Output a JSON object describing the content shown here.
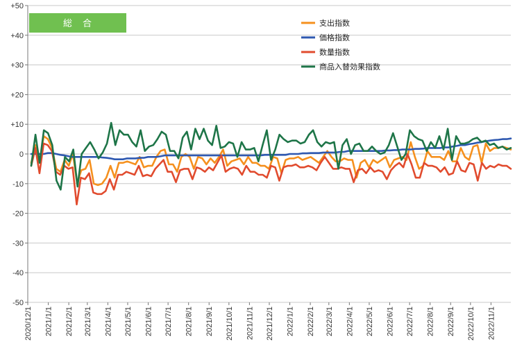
{
  "title_badge": {
    "label": "総　合",
    "color": "#70c050"
  },
  "chart_data": {
    "type": "line",
    "ylim": [
      -50,
      50
    ],
    "yticks": [
      "+50",
      "+40",
      "+30",
      "+20",
      "+10",
      "0",
      "-10",
      "-20",
      "-30",
      "-40",
      "-50"
    ],
    "ytick_values": [
      50,
      40,
      30,
      20,
      10,
      0,
      -10,
      -20,
      -30,
      -40,
      -50
    ],
    "xticks": [
      "2020/12/1",
      "2021/1/1",
      "2021/2/1",
      "2021/3/1",
      "2021/4/1",
      "2021/5/1",
      "2021/6/1",
      "2021/7/1",
      "2021/8/1",
      "2021/9/1",
      "2021/10/1",
      "2021/11/1",
      "2021/12/1",
      "2022/1/1",
      "2022/2/1",
      "2022/3/1",
      "2022/4/1",
      "2022/5/1",
      "2022/6/1",
      "2022/7/1",
      "2022/8/1",
      "2022/9/1",
      "2022/10/1",
      "2022/11/1"
    ],
    "x_start": "2020/12/1",
    "x_end": "2022/12/1",
    "legend_position": "top-right",
    "series": [
      {
        "name": "支出指数",
        "color": "#f5901e",
        "values": [
          -3,
          3,
          -3,
          6,
          5,
          2,
          -5,
          -6,
          -2,
          -4,
          0,
          -10,
          -5.5,
          -5,
          -2,
          -10,
          -10.5,
          -10,
          -8,
          -4,
          -8,
          -3,
          -3,
          -2.5,
          -3,
          -3.5,
          -1,
          -4.5,
          -4,
          -4,
          -1,
          1,
          1.5,
          -3.5,
          -3.5,
          -6,
          -1,
          0,
          -1,
          -5,
          -1,
          -1.5,
          -3.5,
          -1.5,
          -3,
          -1,
          1.5,
          -4,
          -2.5,
          -2,
          -1.5,
          -3.5,
          -1,
          -3,
          -3,
          -4,
          -4,
          -5,
          -1,
          -1.5,
          -6.5,
          -2,
          -1.5,
          -1.5,
          -1,
          -2,
          -1.5,
          -1,
          -2,
          -3,
          -1,
          1,
          -1,
          -2.5,
          -2.5,
          -1.5,
          -2,
          -2,
          -8,
          -3,
          -2,
          -4.5,
          -2,
          -3,
          -2,
          -1,
          -4.5,
          -2,
          -1.5,
          -1,
          -2,
          4,
          -1,
          -5,
          -4,
          1,
          -1,
          -1,
          -1,
          -2,
          1,
          -2.5,
          -2.5,
          2,
          -1,
          -2,
          2.5,
          3,
          -3,
          3.5,
          1,
          2,
          2,
          2.5,
          2,
          1.5
        ]
      },
      {
        "name": "価格指数",
        "color": "#2e58b0",
        "values": [
          0,
          0,
          0,
          0,
          0.3,
          0.3,
          0,
          -0.3,
          -0.5,
          -0.8,
          -1,
          -1,
          -1,
          -1,
          -1,
          -1,
          -1,
          -1.2,
          -1.3,
          -1.5,
          -1.8,
          -1.8,
          -1.8,
          -1.5,
          -1.5,
          -1.5,
          -1.3,
          -1.3,
          -1,
          -1,
          -1,
          -0.8,
          -0.5,
          -0.5,
          -0.5,
          -0.5,
          -0.5,
          -0.5,
          -0.5,
          -0.5,
          -0.5,
          -0.5,
          -0.5,
          -0.5,
          -0.5,
          -0.5,
          -0.5,
          -0.5,
          -0.5,
          -0.5,
          -0.5,
          -0.5,
          -0.5,
          -0.5,
          -0.5,
          -0.5,
          -0.3,
          -0.3,
          -0.3,
          -0.3,
          -0.3,
          -0.3,
          0,
          0,
          0,
          0.2,
          0.2,
          0.3,
          0.3,
          0.3,
          0.5,
          0.5,
          0.5,
          0.5,
          0.7,
          0.7,
          1,
          1,
          1,
          1,
          1,
          1,
          1,
          1,
          1,
          1.2,
          1.2,
          1.3,
          1.3,
          1.5,
          1.5,
          1.5,
          1.7,
          1.7,
          1.8,
          2,
          2,
          2,
          2,
          2.2,
          2.2,
          2.5,
          2.7,
          3,
          3,
          3.3,
          3.5,
          3.8,
          4,
          4.3,
          4.5,
          4.7,
          4.8,
          5,
          5,
          5.2
        ]
      },
      {
        "name": "数量指数",
        "color": "#e14b2e",
        "values": [
          -4,
          2,
          -6.5,
          3.5,
          3,
          1,
          -6,
          -7,
          -4,
          -5,
          -4.5,
          -17,
          -8,
          -8.5,
          -6.5,
          -13,
          -13.5,
          -13.5,
          -12.5,
          -8.5,
          -12,
          -7,
          -7,
          -6,
          -6.5,
          -7,
          -4,
          -7.5,
          -7,
          -7.5,
          -5,
          -3.5,
          -2,
          -6,
          -6,
          -9.5,
          -5.5,
          -5,
          -5,
          -8.5,
          -4.5,
          -5,
          -6,
          -4.5,
          -5.5,
          -3,
          -0.5,
          -6,
          -5,
          -4.5,
          -5,
          -7,
          -4,
          -6,
          -6,
          -7,
          -7,
          -8,
          -4,
          -4.5,
          -9,
          -4.5,
          -4,
          -4,
          -3.5,
          -4.5,
          -4.5,
          -4,
          -4.5,
          -5.5,
          -3,
          -1,
          -3,
          -5,
          -5,
          -4.5,
          -5,
          -5,
          -9.5,
          -5.5,
          -5,
          -6.5,
          -4.5,
          -6,
          -5.5,
          -6,
          -8.5,
          -5.5,
          -4,
          -3,
          -4.5,
          0,
          -3.5,
          -8,
          -8,
          -3,
          -4,
          -4,
          -4.5,
          -6,
          -4.5,
          -7,
          -6.5,
          -2.5,
          -5.5,
          -6,
          -3,
          -3.5,
          -9,
          -3,
          -5,
          -4,
          -4.5,
          -3.5,
          -4,
          -4,
          -5
        ]
      },
      {
        "name": "商品入替効果指数",
        "color": "#1e7548",
        "values": [
          -4,
          6.5,
          -3,
          8,
          7,
          3,
          -9,
          -12,
          -1,
          -2.5,
          1.5,
          -11,
          0,
          2,
          4,
          1.5,
          -1.5,
          0.5,
          3.5,
          10.5,
          3,
          8,
          6.5,
          6.5,
          4,
          2.5,
          8,
          1,
          2.5,
          3,
          5,
          7.5,
          6.5,
          1,
          1,
          -1.5,
          5.5,
          7.5,
          1.5,
          8.5,
          5,
          8.5,
          4.5,
          3,
          9.5,
          2,
          2.5,
          4,
          3.5,
          -1,
          4,
          1.5,
          1.5,
          2,
          -2.5,
          3,
          8,
          -2,
          1.5,
          6.5,
          5,
          4,
          4.5,
          4.5,
          3.5,
          4,
          6.5,
          8,
          4,
          2.5,
          4,
          3.5,
          4,
          -5,
          3,
          5,
          0,
          3,
          3.5,
          1,
          1,
          2.5,
          1,
          0,
          0.5,
          3,
          7,
          2.5,
          -2,
          0,
          8,
          6,
          5,
          4.5,
          1,
          4,
          2,
          6,
          1.5,
          8.5,
          -2,
          6,
          3.5,
          3.5,
          4,
          5,
          5.5,
          4,
          4.5,
          3,
          3.5,
          2,
          2.5,
          1.5,
          2
        ]
      }
    ]
  }
}
